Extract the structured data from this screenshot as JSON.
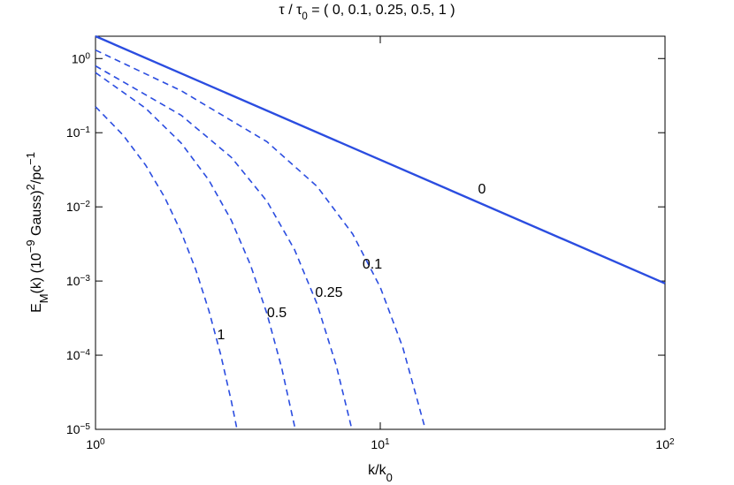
{
  "chart_data": {
    "type": "line",
    "title": [
      {
        "text": "τ / τ"
      },
      {
        "text": "0",
        "shift": "sub"
      },
      {
        "text": " = ( 0, 0.1, 0.25, 0.5, 1 )"
      }
    ],
    "xlabel": [
      {
        "text": "k/k"
      },
      {
        "text": "0",
        "shift": "sub"
      }
    ],
    "ylabel": [
      {
        "text": "E"
      },
      {
        "text": "M",
        "shift": "sub"
      },
      {
        "text": "(k)  (10"
      },
      {
        "text": "−9",
        "shift": "super"
      },
      {
        "text": " Gauss)"
      },
      {
        "text": "2",
        "shift": "super"
      },
      {
        "text": "/pc"
      },
      {
        "text": "−1",
        "shift": "super"
      }
    ],
    "xlog": true,
    "ylog": true,
    "xlim": [
      1,
      100
    ],
    "ylim": [
      1e-05,
      2
    ],
    "xticks": [
      {
        "value": 1,
        "label": [
          {
            "text": "10"
          },
          {
            "text": "0",
            "shift": "super"
          }
        ]
      },
      {
        "value": 10,
        "label": [
          {
            "text": "10"
          },
          {
            "text": "1",
            "shift": "super"
          }
        ]
      },
      {
        "value": 100,
        "label": [
          {
            "text": "10"
          },
          {
            "text": "2",
            "shift": "super"
          }
        ]
      }
    ],
    "yticks": [
      {
        "value": 1,
        "label": [
          {
            "text": "10"
          },
          {
            "text": "0",
            "shift": "super"
          }
        ]
      },
      {
        "value": 0.1,
        "label": [
          {
            "text": "10"
          },
          {
            "text": "−1",
            "shift": "super"
          }
        ]
      },
      {
        "value": 0.01,
        "label": [
          {
            "text": "10"
          },
          {
            "text": "−2",
            "shift": "super"
          }
        ]
      },
      {
        "value": 0.001,
        "label": [
          {
            "text": "10"
          },
          {
            "text": "−3",
            "shift": "super"
          }
        ]
      },
      {
        "value": 0.0001,
        "label": [
          {
            "text": "10"
          },
          {
            "text": "−4",
            "shift": "super"
          }
        ]
      },
      {
        "value": 1e-05,
        "label": [
          {
            "text": "10"
          },
          {
            "text": "−5",
            "shift": "super"
          }
        ]
      }
    ],
    "series": [
      {
        "name": "0",
        "color": "#2b4de0",
        "dashed": false,
        "x": [
          1,
          100
        ],
        "values": [
          2,
          0.000928
        ]
      },
      {
        "name": "0.1",
        "color": "#2b4de0",
        "dashed": true,
        "x": [
          1,
          2,
          4,
          6,
          8,
          10,
          12,
          14.4
        ],
        "values": [
          1.3,
          0.3678,
          0.0755,
          0.01885,
          0.00431,
          0.000824,
          0.000127,
          1e-05
        ]
      },
      {
        "name": "0.25",
        "color": "#2b4de0",
        "dashed": true,
        "x": [
          1,
          2,
          3,
          4,
          5,
          6,
          7,
          7.95
        ],
        "values": [
          0.795,
          0.1716,
          0.0465,
          0.01192,
          0.002645,
          0.000489,
          7.35e-05,
          1e-05
        ]
      },
      {
        "name": "0.5",
        "color": "#2b4de0",
        "dashed": true,
        "x": [
          1,
          1.5,
          2,
          2.5,
          3,
          3.5,
          4,
          4.5,
          5.03
        ],
        "values": [
          0.646,
          0.2135,
          0.0723,
          0.02296,
          0.00656,
          0.001652,
          0.000363,
          6.89e-05,
          1e-05
        ]
      },
      {
        "name": "1",
        "color": "#2b4de0",
        "dashed": true,
        "x": [
          1,
          1.25,
          1.5,
          1.75,
          2,
          2.25,
          2.5,
          2.75,
          3,
          3.14
        ],
        "values": [
          0.224,
          0.0928,
          0.0365,
          0.0134,
          0.00455,
          0.00142,
          0.000401,
          0.000103,
          2.38e-05,
          1e-05
        ]
      }
    ]
  }
}
